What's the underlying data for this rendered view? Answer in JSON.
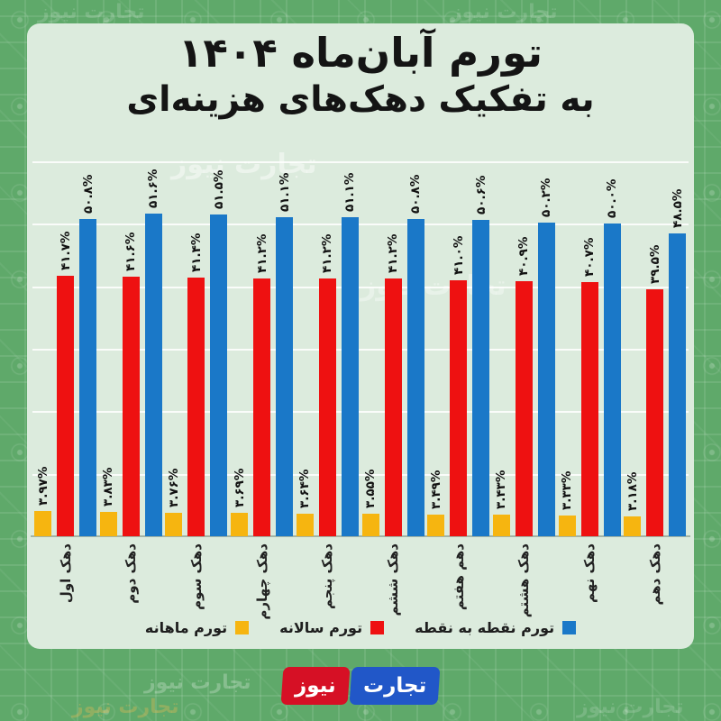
{
  "title": {
    "line1": "تورم آبان‌ماه ۱۴۰۴",
    "line2": "به تفکیک دهک‌های هزینه‌ای"
  },
  "chart_data": {
    "type": "bar",
    "categories": [
      "دهک اول",
      "دهک دوم",
      "دهک سوم",
      "دهک چهارم",
      "دهک پنجم",
      "دهک ششم",
      "دهم هفتم",
      "دهک هشتم",
      "دهک نهم",
      "دهک دهم"
    ],
    "series": [
      {
        "key": "monthly",
        "name": "تورم ماهانه",
        "color": "#f6b510",
        "values": [
          3.97,
          3.83,
          3.76,
          3.69,
          3.64,
          3.55,
          3.49,
          3.43,
          3.33,
          3.18
        ],
        "labels": [
          "۳.۹۷%",
          "۳.۸۳%",
          "۳.۷۶%",
          "۳.۶۹%",
          "۳.۶۴%",
          "۳.۵۵%",
          "۳.۴۹%",
          "۳.۴۳%",
          "۳.۳۳%",
          "۳.۱۸%"
        ]
      },
      {
        "key": "annual",
        "name": "تورم سالانه",
        "color": "#ee1111",
        "values": [
          41.7,
          41.6,
          41.4,
          41.2,
          41.2,
          41.2,
          41.0,
          40.9,
          40.7,
          39.5
        ],
        "labels": [
          "۴۱.۷%",
          "۴۱.۶%",
          "۴۱.۴%",
          "۴۱.۲%",
          "۴۱.۲%",
          "۴۱.۲%",
          "۴۱.۰%",
          "۴۰.۹%",
          "۴۰.۷%",
          "۳۹.۵%"
        ]
      },
      {
        "key": "p2p",
        "name": "تورم نقطه به نقطه",
        "color": "#1a78c8",
        "values": [
          50.8,
          51.6,
          51.5,
          51.1,
          51.1,
          50.8,
          50.6,
          50.2,
          50.0,
          48.5
        ],
        "labels": [
          "۵۰.۸%",
          "۵۱.۶%",
          "۵۱.۵%",
          "۵۱.۱%",
          "۵۱.۱%",
          "۵۰.۸%",
          "۵۰.۶%",
          "۵۰.۲%",
          "۵۰.۰%",
          "۴۸.۵%"
        ]
      }
    ],
    "ylim": [
      0,
      60
    ],
    "grid": true,
    "gridline_step": 10,
    "legend_position": "bottom"
  },
  "legend": {
    "items": [
      {
        "label": "تورم ماهانه",
        "color": "#f6b510"
      },
      {
        "label": "تورم سالانه",
        "color": "#ee1111"
      },
      {
        "label": "تورم نقطه به نقطه",
        "color": "#1a78c8"
      }
    ]
  },
  "logo": {
    "first_word": "تجارت",
    "second_word": "نیوز",
    "blue": "#2157c8",
    "red": "#d61025"
  },
  "watermark_text": "تجارت نیوز",
  "colors": {
    "background_green": "#5fa96a",
    "card_mint": "#dcebdd",
    "grid": "#ffffff",
    "text": "#141414"
  }
}
